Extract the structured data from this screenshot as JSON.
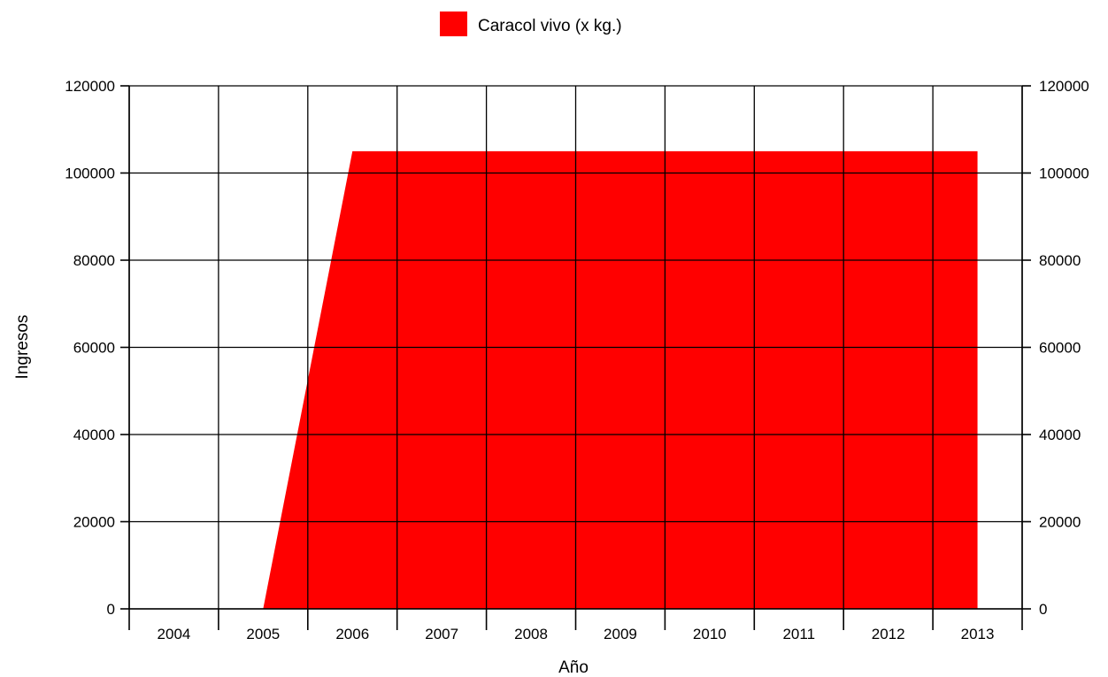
{
  "chart_data": {
    "type": "area",
    "title": "",
    "xlabel": "Año",
    "ylabel": "Ingresos",
    "categories": [
      "2004",
      "2005",
      "2006",
      "2007",
      "2008",
      "2009",
      "2010",
      "2011",
      "2012",
      "2013"
    ],
    "series": [
      {
        "name": "Caracol vivo (x kg.)",
        "color": "#ff0000",
        "x": [
          2005.5,
          2006.5,
          2007.5,
          2008.5,
          2009.5,
          2010.5,
          2011.5,
          2012.5,
          2013.5
        ],
        "values": [
          0,
          105000,
          105000,
          105000,
          105000,
          105000,
          105000,
          105000,
          105000
        ]
      }
    ],
    "ylim": [
      0,
      120000
    ],
    "yticks": [
      "0",
      "20000",
      "40000",
      "60000",
      "80000",
      "100000",
      "120000"
    ],
    "y2ticks": [
      "0",
      "20000",
      "40000",
      "60000",
      "80000",
      "100000",
      "120000"
    ],
    "grid": true,
    "legend_position": "top-center",
    "secondary_y_axis": true
  }
}
